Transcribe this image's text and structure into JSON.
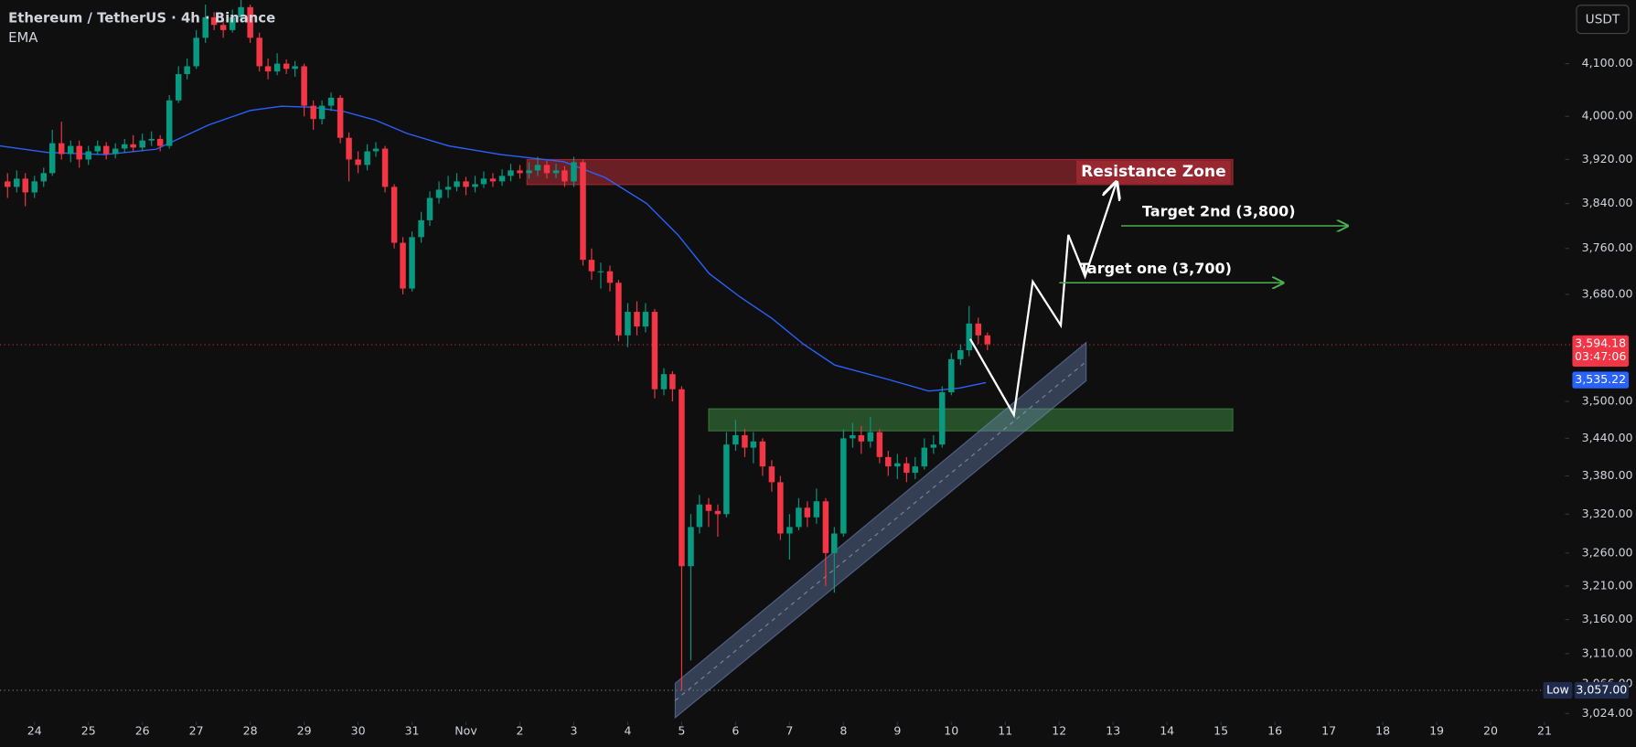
{
  "chart_data": {
    "type": "candlestick",
    "title": "Ethereum / TetherUS · 4h · Binance",
    "indicator": "EMA",
    "currency": "USDT",
    "log_scale": true,
    "up_color": "#089981",
    "down_color": "#f23645",
    "x": [
      -0.5,
      -0.33,
      -0.17,
      0,
      0.17,
      0.33,
      0.5,
      0.67,
      0.83,
      1,
      1.17,
      1.33,
      1.5,
      1.67,
      1.83,
      2,
      2.17,
      2.33,
      2.5,
      2.67,
      2.83,
      3,
      3.17,
      3.33,
      3.5,
      3.67,
      3.83,
      4,
      4.17,
      4.33,
      4.5,
      4.67,
      4.83,
      5,
      5.17,
      5.33,
      5.5,
      5.67,
      5.83,
      6,
      6.17,
      6.33,
      6.5,
      6.67,
      6.83,
      7,
      7.17,
      7.33,
      7.5,
      7.67,
      7.83,
      8,
      8.17,
      8.33,
      8.5,
      8.67,
      8.83,
      9,
      9.17,
      9.33,
      9.5,
      9.67,
      9.83,
      10,
      10.17,
      10.33,
      10.5,
      10.67,
      10.83,
      11,
      11.17,
      11.33,
      11.5,
      11.67,
      11.83,
      12,
      12.17,
      12.33,
      12.5,
      12.67,
      12.83,
      13,
      13.17,
      13.33,
      13.5,
      13.67,
      13.83,
      14,
      14.17,
      14.33,
      14.5,
      14.67,
      14.83,
      15,
      15.17,
      15.33,
      15.5,
      15.67,
      15.83,
      16,
      16.17,
      16.33,
      16.5,
      16.67,
      16.83,
      17,
      17.17,
      17.33,
      17.5,
      17.67
    ],
    "open": [
      3880,
      3870,
      3885,
      3860,
      3880,
      3895,
      3950,
      3930,
      3945,
      3920,
      3935,
      3945,
      3930,
      3940,
      3948,
      3942,
      3955,
      3958,
      3945,
      4030,
      4080,
      4095,
      4150,
      4190,
      4175,
      4165,
      4190,
      4210,
      4150,
      4095,
      4085,
      4100,
      4090,
      4095,
      4020,
      3995,
      4020,
      4035,
      3960,
      3920,
      3910,
      3935,
      3940,
      3870,
      3770,
      3690,
      3780,
      3810,
      3850,
      3865,
      3870,
      3880,
      3870,
      3875,
      3885,
      3880,
      3890,
      3900,
      3895,
      3900,
      3910,
      3895,
      3900,
      3880,
      3915,
      3740,
      3720,
      3720,
      3700,
      3610,
      3650,
      3625,
      3650,
      3520,
      3545,
      3520,
      3240,
      3300,
      3335,
      3325,
      3320,
      3430,
      3445,
      3425,
      3435,
      3395,
      3370,
      3290,
      3300,
      3330,
      3315,
      3340,
      3260,
      3290,
      3440,
      3445,
      3435,
      3450,
      3410,
      3395,
      3400,
      3385,
      3395,
      3425,
      3430,
      3515,
      3570,
      3585,
      3630,
      3610
    ],
    "high": [
      3895,
      3900,
      3895,
      3890,
      3905,
      3975,
      3990,
      3955,
      3955,
      3945,
      3955,
      3952,
      3950,
      3958,
      3965,
      3968,
      3972,
      3965,
      4040,
      4095,
      4110,
      4165,
      4215,
      4200,
      4185,
      4205,
      4230,
      4215,
      4160,
      4110,
      4120,
      4108,
      4105,
      4100,
      4030,
      4030,
      4045,
      4040,
      3970,
      3935,
      3948,
      3952,
      3945,
      3875,
      3780,
      3790,
      3825,
      3862,
      3880,
      3890,
      3895,
      3888,
      3890,
      3898,
      3895,
      3902,
      3912,
      3910,
      3915,
      3925,
      3918,
      3912,
      3908,
      3925,
      3920,
      3760,
      3735,
      3730,
      3705,
      3665,
      3668,
      3665,
      3655,
      3555,
      3550,
      3525,
      3320,
      3350,
      3345,
      3335,
      3450,
      3470,
      3455,
      3450,
      3440,
      3405,
      3380,
      3320,
      3345,
      3340,
      3360,
      3345,
      3300,
      3455,
      3465,
      3460,
      3475,
      3455,
      3420,
      3415,
      3410,
      3410,
      3440,
      3445,
      3525,
      3580,
      3595,
      3660,
      3640,
      3615
    ],
    "low": [
      3850,
      3860,
      3835,
      3850,
      3870,
      3890,
      3920,
      3915,
      3905,
      3910,
      3928,
      3920,
      3922,
      3932,
      3935,
      3935,
      3945,
      3935,
      3940,
      4025,
      4070,
      4090,
      4140,
      4165,
      4150,
      4160,
      4180,
      4140,
      4085,
      4070,
      4078,
      4080,
      4075,
      4000,
      3975,
      3985,
      4010,
      3950,
      3880,
      3895,
      3900,
      3925,
      3860,
      3760,
      3680,
      3685,
      3770,
      3800,
      3840,
      3850,
      3862,
      3855,
      3860,
      3868,
      3870,
      3872,
      3880,
      3885,
      3885,
      3890,
      3885,
      3886,
      3870,
      3870,
      3730,
      3705,
      3690,
      3685,
      3600,
      3590,
      3610,
      3615,
      3505,
      3510,
      3500,
      3057,
      3100,
      3290,
      3300,
      3285,
      3315,
      3420,
      3410,
      3400,
      3380,
      3355,
      3280,
      3250,
      3295,
      3300,
      3305,
      3210,
      3200,
      3285,
      3425,
      3415,
      3425,
      3400,
      3380,
      3375,
      3370,
      3375,
      3390,
      3415,
      3425,
      3510,
      3560,
      3575,
      3595,
      3585
    ],
    "close": [
      3870,
      3885,
      3860,
      3880,
      3895,
      3950,
      3930,
      3945,
      3920,
      3935,
      3945,
      3930,
      3940,
      3948,
      3942,
      3955,
      3958,
      3945,
      4030,
      4080,
      4095,
      4150,
      4190,
      4175,
      4165,
      4190,
      4210,
      4150,
      4095,
      4085,
      4100,
      4090,
      4095,
      4020,
      3995,
      4020,
      4035,
      3960,
      3920,
      3910,
      3935,
      3940,
      3870,
      3770,
      3690,
      3780,
      3810,
      3850,
      3865,
      3870,
      3880,
      3870,
      3875,
      3885,
      3880,
      3890,
      3900,
      3895,
      3900,
      3910,
      3895,
      3900,
      3880,
      3915,
      3740,
      3720,
      3720,
      3700,
      3610,
      3650,
      3625,
      3650,
      3520,
      3545,
      3520,
      3240,
      3300,
      3335,
      3325,
      3320,
      3430,
      3445,
      3425,
      3435,
      3395,
      3370,
      3290,
      3300,
      3330,
      3315,
      3340,
      3260,
      3290,
      3440,
      3445,
      3435,
      3450,
      3410,
      3395,
      3400,
      3385,
      3395,
      3425,
      3430,
      3515,
      3570,
      3585,
      3630,
      3610,
      3595
    ],
    "xlim": [
      -0.64,
      28.38
    ],
    "xticks": [
      {
        "value": 0,
        "label": "24"
      },
      {
        "value": 1,
        "label": "25"
      },
      {
        "value": 2,
        "label": "26"
      },
      {
        "value": 3,
        "label": "27"
      },
      {
        "value": 4,
        "label": "28"
      },
      {
        "value": 5,
        "label": "29"
      },
      {
        "value": 6,
        "label": "30"
      },
      {
        "value": 7,
        "label": "31"
      },
      {
        "value": 8,
        "label": "Nov"
      },
      {
        "value": 9,
        "label": "2"
      },
      {
        "value": 10,
        "label": "3"
      },
      {
        "value": 11,
        "label": "4"
      },
      {
        "value": 12,
        "label": "5"
      },
      {
        "value": 13,
        "label": "6"
      },
      {
        "value": 14,
        "label": "7"
      },
      {
        "value": 15,
        "label": "8"
      },
      {
        "value": 16,
        "label": "9"
      },
      {
        "value": 17,
        "label": "10"
      },
      {
        "value": 18,
        "label": "11"
      },
      {
        "value": 19,
        "label": "12"
      },
      {
        "value": 20,
        "label": "13"
      },
      {
        "value": 21,
        "label": "14"
      },
      {
        "value": 22,
        "label": "15"
      },
      {
        "value": 23,
        "label": "16"
      },
      {
        "value": 24,
        "label": "17"
      },
      {
        "value": 25,
        "label": "18"
      },
      {
        "value": 26,
        "label": "19"
      },
      {
        "value": 27,
        "label": "20"
      },
      {
        "value": 28,
        "label": "21"
      }
    ],
    "ylim": [
      3015,
      4224
    ],
    "yticks": [
      {
        "value": 4100,
        "label": "4,100.00"
      },
      {
        "value": 4000,
        "label": "4,000.00"
      },
      {
        "value": 3920,
        "label": "3,920.00"
      },
      {
        "value": 3840,
        "label": "3,840.00"
      },
      {
        "value": 3760,
        "label": "3,760.00"
      },
      {
        "value": 3680,
        "label": "3,680.00"
      },
      {
        "value": 3500,
        "label": "3,500.00"
      },
      {
        "value": 3440,
        "label": "3,440.00"
      },
      {
        "value": 3380,
        "label": "3,380.00"
      },
      {
        "value": 3320,
        "label": "3,320.00"
      },
      {
        "value": 3260,
        "label": "3,260.00"
      },
      {
        "value": 3210,
        "label": "3,210.00"
      },
      {
        "value": 3160,
        "label": "3,160.00"
      },
      {
        "value": 3110,
        "label": "3,110.00"
      },
      {
        "value": 3066,
        "label": "3,066.00"
      },
      {
        "value": 3024,
        "label": "3,024.00"
      }
    ],
    "ema": {
      "color": "#2962ff",
      "x": [
        -0.64,
        0.23,
        1.3,
        2.26,
        3.23,
        4.0,
        4.58,
        5.16,
        5.74,
        6.32,
        6.91,
        7.68,
        8.65,
        9.81,
        10.58,
        11.35,
        11.93,
        12.51,
        13.09,
        13.67,
        14.26,
        14.84,
        15.8,
        16.58,
        17.15,
        17.64
      ],
      "values": [
        3945,
        3933,
        3929,
        3939,
        3984,
        4011,
        4019,
        4017,
        4009,
        3993,
        3968,
        3945,
        3929,
        3916,
        3887,
        3840,
        3784,
        3716,
        3675,
        3639,
        3595,
        3560,
        3537,
        3517,
        3522,
        3531
      ],
      "value": 3535.22,
      "value_label": "3,535.22"
    },
    "last_price": {
      "value": 3594.18,
      "label": "3,594.18",
      "countdown": "03:47:06",
      "color": "#f23645"
    },
    "low_marker": {
      "label": "Low",
      "value": 3057,
      "value_label": "3,057.00"
    },
    "zones": [
      {
        "x": [
          9.13,
          22.22
        ],
        "y": [
          3874,
          3920
        ],
        "color": "#f23645",
        "label": "Resistance Zone"
      },
      {
        "x": [
          12.5,
          22.22
        ],
        "y": [
          3452,
          3488
        ],
        "color": "#4caf50"
      }
    ],
    "channel": {
      "color": "#6d86b8",
      "x": [
        11.88,
        19.5
      ],
      "upper": [
        3067,
        3598
      ],
      "lower": [
        3018,
        3534
      ]
    },
    "projection": {
      "color": "#ffffff",
      "x": [
        17.35,
        18.16,
        18.51,
        19.03,
        19.17,
        19.48,
        20.06
      ],
      "values": [
        3604,
        3478,
        3702,
        3627,
        3784,
        3711,
        3878
      ]
    },
    "targets": [
      {
        "label": "Target one (3,700)",
        "value": 3700,
        "x": [
          19.0,
          23.15
        ],
        "color": "#4caf50"
      },
      {
        "label": "Target 2nd (3,800)",
        "value": 3800,
        "x": [
          20.15,
          24.35
        ],
        "color": "#4caf50"
      }
    ]
  }
}
